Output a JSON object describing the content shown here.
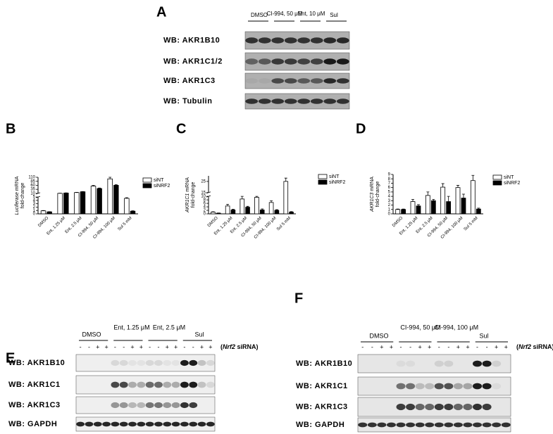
{
  "chart_data": [
    {
      "type": "bar",
      "panel": "B",
      "ylabel": {
        "gene": "Luciferase",
        "rest": "mRNA",
        "line2": "fold-change"
      },
      "categories": [
        "DMSO",
        "Ent, 1.25 μM",
        "Ent, 2.5 μM",
        "CI-994, 50 μM",
        "CI-994, 100 μM",
        "Sul 5 mM"
      ],
      "series": [
        {
          "name": "siNT",
          "color": "#ffffff",
          "values": [
            0.9,
            10,
            15,
            55,
            100,
            4.6
          ],
          "errors": [
            0.1,
            1,
            1.5,
            4,
            10,
            0.2
          ]
        },
        {
          "name": "siNRF2",
          "color": "#000000",
          "values": [
            0.6,
            12,
            20,
            40,
            60,
            0.8
          ],
          "errors": [
            0.05,
            1,
            1.5,
            3,
            4,
            0.1
          ]
        }
      ],
      "ylim": [
        0,
        110
      ],
      "ybreak": [
        5,
        10
      ],
      "yticks": [
        0,
        1,
        2,
        3,
        4,
        5,
        10,
        35,
        60,
        85,
        110
      ],
      "legend": "right"
    },
    {
      "type": "bar",
      "panel": "C",
      "ylabel": {
        "gene": "AKR1C1",
        "rest": "mRNA",
        "line2": "fold-change"
      },
      "categories": [
        "DMSO",
        "Ent, 1.25 μM",
        "Ent, 2.5 μM",
        "CI-994, 50 μM",
        "CI-994, 100 μM",
        "Sul 5 mM"
      ],
      "series": [
        {
          "name": "siNT",
          "color": "#ffffff",
          "values": [
            1,
            4.5,
            8.5,
            9.5,
            6.5,
            25
          ],
          "errors": [
            0.2,
            1,
            1.5,
            0.5,
            1,
            3
          ]
        },
        {
          "name": "siNRF2",
          "color": "#000000",
          "values": [
            0.4,
            2.2,
            3.8,
            2.2,
            2,
            1
          ],
          "errors": [
            0.1,
            0.4,
            0.5,
            0.6,
            0.4,
            0.3
          ]
        }
      ],
      "ylim": [
        0,
        30
      ],
      "ybreak": [
        10,
        15
      ],
      "yticks": [
        0,
        2,
        4,
        6,
        8,
        10,
        15,
        25
      ],
      "legend": "right"
    },
    {
      "type": "bar",
      "panel": "D",
      "ylabel": {
        "gene": "AKR1C3",
        "rest": "mRNA",
        "line2": "fold-change"
      },
      "categories": [
        "DMSO",
        "Ent, 1.25 μM",
        "Ent, 2.5 μM",
        "CI-994, 50 μM",
        "CI-994, 100 μM",
        "Sul 5 mM"
      ],
      "series": [
        {
          "name": "siNT",
          "color": "#ffffff",
          "values": [
            1,
            2.8,
            4.2,
            6.1,
            6,
            7.6
          ],
          "errors": [
            0.1,
            0.5,
            0.8,
            0.8,
            0.5,
            1.2
          ]
        },
        {
          "name": "siNRF2",
          "color": "#000000",
          "values": [
            1,
            1.8,
            3,
            2.8,
            3.6,
            1.1
          ],
          "errors": [
            0.1,
            0.3,
            0.3,
            1.2,
            0.9,
            0.2
          ]
        }
      ],
      "ylim": [
        0,
        9
      ],
      "yticks": [
        0,
        1,
        2,
        3,
        4,
        5,
        6,
        7,
        8,
        9
      ],
      "legend": "right"
    }
  ],
  "blots": {
    "A": {
      "panel": "A",
      "groups": [
        "DMSO",
        "CI-994, 50 μM",
        "Ent, 10 μM",
        "Sul"
      ],
      "rows": [
        "WB: AKR1B10",
        "WB: AKR1C1/2",
        "WB: AKR1C3",
        "WB: Tubulin"
      ]
    },
    "E": {
      "panel": "E",
      "groups": [
        "DMSO",
        "Ent, 1.25 μM",
        "Ent, 2.5 μM",
        "Sul"
      ],
      "signs": [
        "-",
        "-",
        "+",
        "+"
      ],
      "note": {
        "open": "(",
        "gene": "Nrf2",
        "rest": "siRNA)"
      },
      "rows": [
        "WB: AKR1B10",
        "WB: AKR1C1",
        "WB: AKR1C3",
        "WB: GAPDH"
      ]
    },
    "F": {
      "panel": "F",
      "groups": [
        "DMSO",
        "CI-994, 50 μM",
        "CI-994, 100 μM",
        "Sul"
      ],
      "signs": [
        "-",
        "-",
        "+",
        "+"
      ],
      "note": {
        "open": "(",
        "gene": "Nrf2",
        "rest": "siRNA)"
      },
      "rows": [
        "WB: AKR1B10",
        "WB: AKR1C1",
        "WB: AKR1C3",
        "WB: GAPDH"
      ]
    }
  }
}
